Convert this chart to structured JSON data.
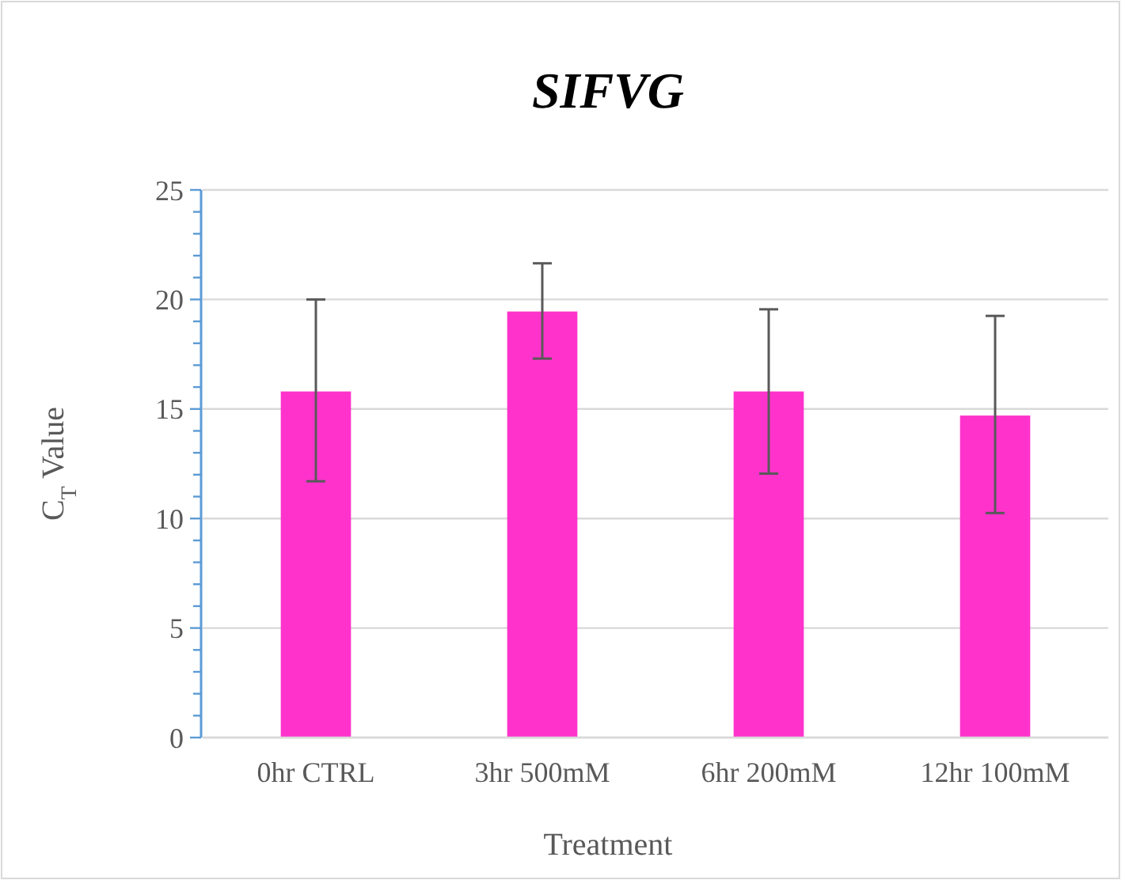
{
  "chart_data": {
    "type": "bar",
    "title": "SIFVG",
    "xlabel": "Treatment",
    "ylabel": "C$_{T}$ Value",
    "categories": [
      "0hr CTRL",
      "3hr 500mM",
      "6hr 200mM",
      "12hr 100mM"
    ],
    "values": [
      15.8,
      19.45,
      15.8,
      14.7
    ],
    "errors": [
      [
        11.7,
        20.0
      ],
      [
        17.3,
        21.65
      ],
      [
        12.05,
        19.55
      ],
      [
        10.25,
        19.25
      ]
    ],
    "color": "#ff33cc",
    "ylim": [
      0,
      25
    ],
    "yticks": [
      0,
      {
        "value": 1,
        "label": null
      },
      {
        "value": 2,
        "label": null
      },
      {
        "value": 3,
        "label": null
      },
      {
        "value": 4,
        "label": null
      },
      5,
      {
        "value": 6,
        "label": null
      },
      {
        "value": 7,
        "label": null
      },
      {
        "value": 8,
        "label": null
      },
      {
        "value": 9,
        "label": null
      },
      10,
      {
        "value": 11,
        "label": null
      },
      {
        "value": 12,
        "label": null
      },
      {
        "value": 13,
        "label": null
      },
      {
        "value": 14,
        "label": null
      },
      15,
      {
        "value": 16,
        "label": null
      },
      {
        "value": 17,
        "label": null
      },
      {
        "value": 18,
        "label": null
      },
      {
        "value": 19,
        "label": null
      },
      20,
      {
        "value": 21,
        "label": null
      },
      {
        "value": 22,
        "label": null
      },
      {
        "value": 23,
        "label": null
      },
      {
        "value": 24,
        "label": null
      },
      25
    ],
    "grid": "y"
  }
}
